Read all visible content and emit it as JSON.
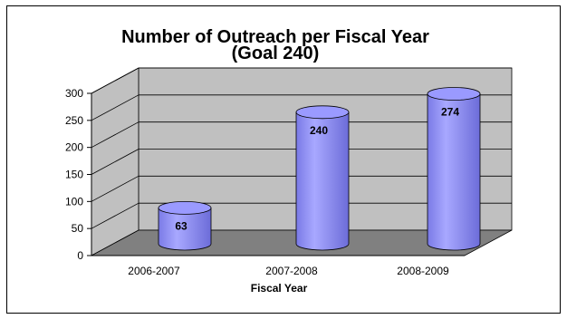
{
  "chart_data": {
    "type": "bar",
    "title": "Number of Outreach per Fiscal Year",
    "subtitle": "(Goal 240)",
    "xlabel": "Fiscal Year",
    "ylabel": "",
    "categories": [
      "2006-2007",
      "2007-2008",
      "2008-2009"
    ],
    "values": [
      63,
      240,
      274
    ],
    "data_labels": [
      "63",
      "240",
      "274"
    ],
    "y_ticks": [
      0,
      50,
      100,
      150,
      200,
      250,
      300
    ],
    "ylim": [
      0,
      300
    ],
    "grid": true,
    "legend": "none",
    "style": "3d-cylinder",
    "colors": {
      "bar_fill": "#9a9aff",
      "bar_dark": "#6666cc",
      "wall": "#c0c0c0",
      "floor": "#808080"
    }
  }
}
